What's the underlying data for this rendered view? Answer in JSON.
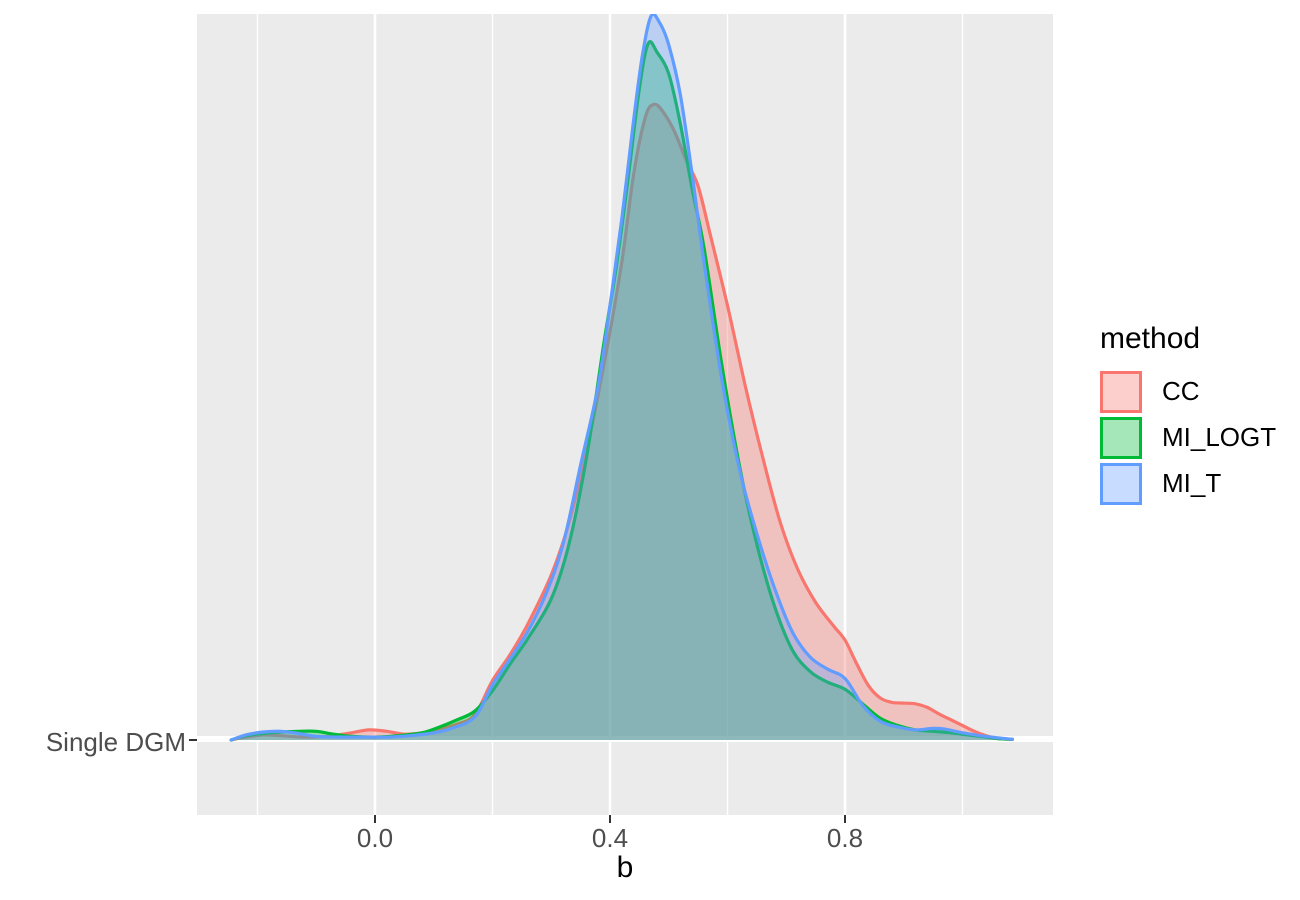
{
  "figure": {
    "kind": "density ridgeline plot (ggplot2 style)",
    "background": "#FFFFFF"
  },
  "panel": {
    "bg": "#EBEBEB",
    "grid_color": "#FFFFFF",
    "baseline_gridline_color": "#FFFFFF"
  },
  "x_axis": {
    "title": "b",
    "tick_labels": [
      "0.0",
      "0.4",
      "0.8"
    ],
    "tick_values": [
      0.0,
      0.4,
      0.8
    ],
    "minor_gridlines": [
      -0.2,
      0.2,
      0.6,
      1.0
    ],
    "text_color": "#4D4D4D",
    "title_color": "#000000",
    "tick_mark_color": "#333333"
  },
  "y_axis": {
    "tick_labels": [
      "Single DGM"
    ],
    "text_color": "#4D4D4D"
  },
  "legend": {
    "title": "method",
    "fill_alpha": 0.35,
    "entries": [
      {
        "label": "CC",
        "color": "#F8766D"
      },
      {
        "label": "MI_LOGT",
        "color": "#00BA38"
      },
      {
        "label": "MI_T",
        "color": "#619CFF"
      }
    ]
  },
  "chart_data": {
    "type": "area",
    "subtype": "overlapping kernel density curves on one ridgeline row",
    "title": "",
    "xlabel": "b",
    "ylabel": "",
    "y_categories": [
      "Single DGM"
    ],
    "x_range_shown": [
      -0.303,
      1.154
    ],
    "x_major_ticks": [
      0.0,
      0.4,
      0.8
    ],
    "x_minor_gridlines": [
      -0.2,
      0.2,
      0.6,
      1.0
    ],
    "legend_title": "method",
    "legend_position": "right",
    "grid": true,
    "fill_alpha": 0.35,
    "height_note": "density heights normalized so MI_T peak = 1.0; all three modes near b = 0.47",
    "series": [
      {
        "name": "CC",
        "color": "#F8766D",
        "peak": {
          "b": 0.47,
          "height": 0.878
        },
        "points": [
          [
            -0.245,
            0.0
          ],
          [
            -0.22,
            0.004
          ],
          [
            -0.19,
            0.007
          ],
          [
            -0.16,
            0.006
          ],
          [
            -0.12,
            0.004
          ],
          [
            -0.08,
            0.005
          ],
          [
            -0.04,
            0.01
          ],
          [
            -0.01,
            0.014
          ],
          [
            0.02,
            0.012
          ],
          [
            0.05,
            0.008
          ],
          [
            0.08,
            0.01
          ],
          [
            0.11,
            0.015
          ],
          [
            0.14,
            0.022
          ],
          [
            0.17,
            0.035
          ],
          [
            0.2,
            0.082
          ],
          [
            0.23,
            0.118
          ],
          [
            0.26,
            0.16
          ],
          [
            0.3,
            0.228
          ],
          [
            0.33,
            0.3
          ],
          [
            0.36,
            0.4
          ],
          [
            0.39,
            0.52
          ],
          [
            0.42,
            0.66
          ],
          [
            0.44,
            0.78
          ],
          [
            0.46,
            0.86
          ],
          [
            0.475,
            0.878
          ],
          [
            0.49,
            0.868
          ],
          [
            0.51,
            0.84
          ],
          [
            0.53,
            0.8
          ],
          [
            0.55,
            0.765
          ],
          [
            0.57,
            0.7
          ],
          [
            0.6,
            0.6
          ],
          [
            0.63,
            0.49
          ],
          [
            0.66,
            0.39
          ],
          [
            0.69,
            0.3
          ],
          [
            0.72,
            0.235
          ],
          [
            0.75,
            0.19
          ],
          [
            0.78,
            0.158
          ],
          [
            0.8,
            0.138
          ],
          [
            0.82,
            0.105
          ],
          [
            0.84,
            0.075
          ],
          [
            0.86,
            0.058
          ],
          [
            0.88,
            0.052
          ],
          [
            0.9,
            0.051
          ],
          [
            0.92,
            0.05
          ],
          [
            0.94,
            0.045
          ],
          [
            0.96,
            0.036
          ],
          [
            0.98,
            0.028
          ],
          [
            1.0,
            0.02
          ],
          [
            1.02,
            0.012
          ],
          [
            1.04,
            0.006
          ],
          [
            1.06,
            0.002
          ],
          [
            1.085,
            0.001
          ]
        ]
      },
      {
        "name": "MI_LOGT",
        "color": "#00BA38",
        "peak": {
          "b": 0.465,
          "height": 0.962
        },
        "points": [
          [
            -0.245,
            0.0
          ],
          [
            -0.22,
            0.006
          ],
          [
            -0.19,
            0.009
          ],
          [
            -0.16,
            0.011
          ],
          [
            -0.13,
            0.012
          ],
          [
            -0.1,
            0.012
          ],
          [
            -0.07,
            0.008
          ],
          [
            -0.04,
            0.005
          ],
          [
            0.0,
            0.004
          ],
          [
            0.04,
            0.006
          ],
          [
            0.08,
            0.01
          ],
          [
            0.11,
            0.018
          ],
          [
            0.14,
            0.028
          ],
          [
            0.17,
            0.04
          ],
          [
            0.2,
            0.068
          ],
          [
            0.23,
            0.105
          ],
          [
            0.26,
            0.14
          ],
          [
            0.3,
            0.195
          ],
          [
            0.33,
            0.27
          ],
          [
            0.36,
            0.39
          ],
          [
            0.39,
            0.55
          ],
          [
            0.41,
            0.65
          ],
          [
            0.43,
            0.77
          ],
          [
            0.45,
            0.9
          ],
          [
            0.465,
            0.962
          ],
          [
            0.48,
            0.95
          ],
          [
            0.5,
            0.92
          ],
          [
            0.52,
            0.85
          ],
          [
            0.54,
            0.76
          ],
          [
            0.56,
            0.68
          ],
          [
            0.59,
            0.52
          ],
          [
            0.62,
            0.38
          ],
          [
            0.65,
            0.27
          ],
          [
            0.68,
            0.185
          ],
          [
            0.71,
            0.125
          ],
          [
            0.74,
            0.095
          ],
          [
            0.77,
            0.08
          ],
          [
            0.8,
            0.07
          ],
          [
            0.83,
            0.05
          ],
          [
            0.86,
            0.03
          ],
          [
            0.89,
            0.02
          ],
          [
            0.92,
            0.014
          ],
          [
            0.95,
            0.012
          ],
          [
            0.98,
            0.01
          ],
          [
            1.01,
            0.007
          ],
          [
            1.04,
            0.004
          ],
          [
            1.06,
            0.002
          ],
          [
            1.085,
            0.001
          ]
        ]
      },
      {
        "name": "MI_T",
        "color": "#619CFF",
        "peak": {
          "b": 0.47,
          "height": 1.0
        },
        "points": [
          [
            -0.245,
            0.0
          ],
          [
            -0.22,
            0.007
          ],
          [
            -0.19,
            0.011
          ],
          [
            -0.16,
            0.012
          ],
          [
            -0.13,
            0.009
          ],
          [
            -0.1,
            0.005
          ],
          [
            -0.06,
            0.004
          ],
          [
            -0.02,
            0.004
          ],
          [
            0.02,
            0.004
          ],
          [
            0.06,
            0.006
          ],
          [
            0.1,
            0.01
          ],
          [
            0.13,
            0.016
          ],
          [
            0.17,
            0.032
          ],
          [
            0.2,
            0.076
          ],
          [
            0.23,
            0.112
          ],
          [
            0.26,
            0.15
          ],
          [
            0.29,
            0.2
          ],
          [
            0.32,
            0.27
          ],
          [
            0.35,
            0.38
          ],
          [
            0.38,
            0.49
          ],
          [
            0.4,
            0.6
          ],
          [
            0.42,
            0.72
          ],
          [
            0.44,
            0.855
          ],
          [
            0.455,
            0.945
          ],
          [
            0.47,
            1.0
          ],
          [
            0.485,
            0.99
          ],
          [
            0.5,
            0.96
          ],
          [
            0.52,
            0.89
          ],
          [
            0.54,
            0.78
          ],
          [
            0.56,
            0.66
          ],
          [
            0.59,
            0.5
          ],
          [
            0.62,
            0.375
          ],
          [
            0.65,
            0.285
          ],
          [
            0.68,
            0.21
          ],
          [
            0.71,
            0.15
          ],
          [
            0.74,
            0.115
          ],
          [
            0.77,
            0.098
          ],
          [
            0.8,
            0.085
          ],
          [
            0.83,
            0.048
          ],
          [
            0.86,
            0.026
          ],
          [
            0.89,
            0.018
          ],
          [
            0.92,
            0.014
          ],
          [
            0.95,
            0.016
          ],
          [
            0.97,
            0.015
          ],
          [
            1.0,
            0.01
          ],
          [
            1.03,
            0.006
          ],
          [
            1.06,
            0.003
          ],
          [
            1.085,
            0.001
          ]
        ]
      }
    ]
  }
}
